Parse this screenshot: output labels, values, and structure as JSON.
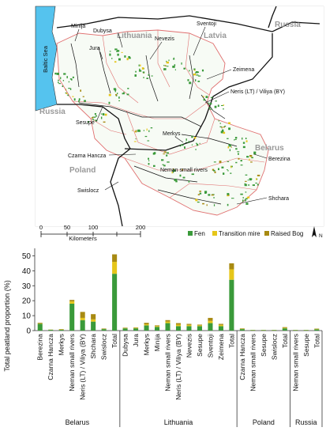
{
  "map": {
    "sea_label": "Baltic Sea",
    "countries": [
      "Lithuania",
      "Latvia",
      "Russia",
      "Russia",
      "Poland",
      "Belarus"
    ],
    "rivers": [
      "Minija",
      "Dubysa",
      "Jura",
      "Nevezis",
      "Sventoji",
      "Zeimena",
      "Neris (LT) / Viliya (BY)",
      "Sesupe",
      "Merkys",
      "Berezina",
      "Czarna Hancza",
      "Neman small rivers",
      "Swislocz",
      "Shchara"
    ],
    "scale": {
      "ticks": [
        "0",
        "50",
        "100",
        "200"
      ],
      "unit": "Kilometers"
    },
    "north": "N",
    "legend": [
      {
        "label": "Fen",
        "color": "#3a9a3a"
      },
      {
        "label": "Transition mire",
        "color": "#e6c619"
      },
      {
        "label": "Raised Bog",
        "color": "#a88a12"
      }
    ],
    "colors": {
      "sea": "#55c3ee",
      "border": "#e07070",
      "river": "#111111"
    }
  },
  "chart_data": {
    "type": "bar",
    "stacked": true,
    "ylabel": "Total peatland proportion (%)",
    "ylim": [
      0,
      55
    ],
    "yticks": [
      0,
      10,
      20,
      30,
      40,
      50
    ],
    "categories": [
      "Berezina",
      "Czarna Hancza",
      "Merkys",
      "Neman small rivers",
      "Neris (LT) / Viliya (BY)",
      "Shchara",
      "Swislocz",
      "Total",
      "Dubysa",
      "Jura",
      "Merkys",
      "Minija",
      "Neman small rivers",
      "Neris (LT) / Viliya (BY)",
      "Nevezis",
      "Sesupe",
      "Sventoji",
      "Zeimena",
      "Total",
      "Czarna Hancza",
      "Neman small rivers",
      "Sesupe",
      "Swislocz",
      "Total",
      "Neman small rivers",
      "Sesupe",
      "Total"
    ],
    "series": [
      {
        "name": "Fen",
        "color": "#3a9a3a",
        "values": [
          4.5,
          0.5,
          0.5,
          18,
          7,
          6,
          1,
          38,
          1.5,
          1.5,
          3.5,
          2.5,
          5,
          3,
          3,
          3,
          5,
          3,
          34,
          1,
          0.3,
          0.3,
          0.3,
          1.5,
          0.3,
          0.3,
          0.8
        ]
      },
      {
        "name": "Transition mire",
        "color": "#e6c619",
        "values": [
          0.2,
          0.1,
          0.2,
          1.5,
          1.5,
          1.5,
          0.1,
          8,
          0.2,
          0.3,
          0.7,
          0.5,
          1,
          1,
          0.8,
          0.5,
          1.5,
          0.8,
          7,
          0.2,
          0.1,
          0.1,
          0.1,
          0.3,
          0.1,
          0.1,
          0.2
        ]
      },
      {
        "name": "Raised Bog",
        "color": "#a88a12",
        "values": [
          0.5,
          0.1,
          0.3,
          1,
          4,
          3.5,
          0.3,
          5,
          0.3,
          0.3,
          1,
          0.5,
          1,
          1,
          0.7,
          0.5,
          2,
          0.7,
          4,
          0.3,
          0.1,
          0.1,
          0.1,
          0.5,
          0.1,
          0.1,
          0.3
        ]
      }
    ],
    "groups": [
      {
        "name": "Belarus",
        "count": 8
      },
      {
        "name": "Lithuania",
        "count": 11
      },
      {
        "name": "Poland",
        "count": 5
      },
      {
        "name": "Russia",
        "count": 3
      }
    ]
  }
}
